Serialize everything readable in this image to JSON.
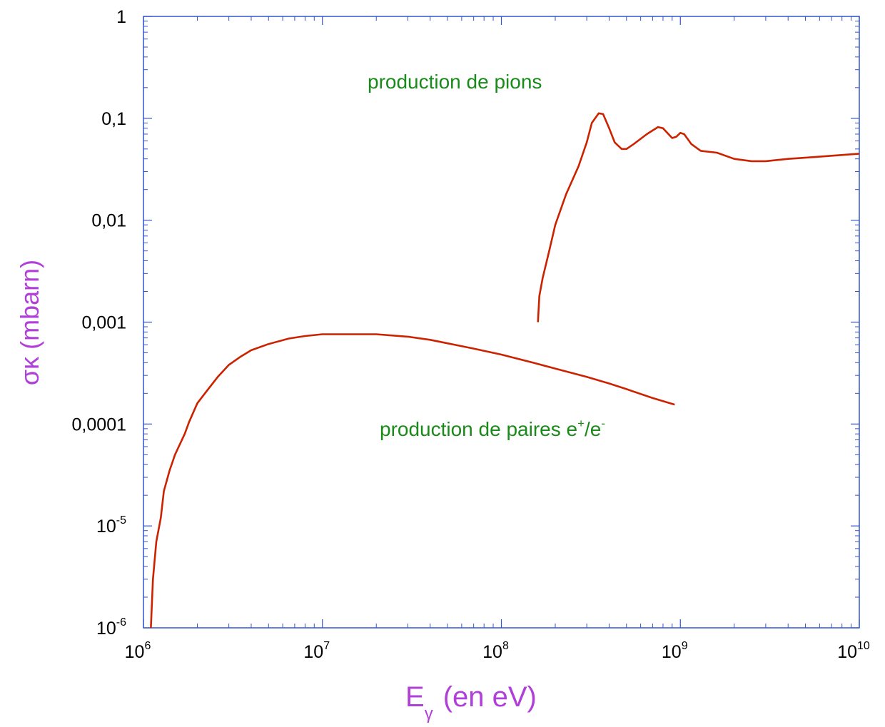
{
  "chart_data": {
    "type": "line",
    "xscale": "log",
    "yscale": "log",
    "xlim": [
      1000000,
      10000000000
    ],
    "ylim": [
      1e-06,
      1
    ],
    "grid": false,
    "xlabel": "E",
    "xlabel_subscript": "γ",
    "xlabel_suffix": "(en eV)",
    "ylabel": "σκ (mbarn)",
    "x_ticks": [
      {
        "value": 1000000,
        "base": "10",
        "exp": "6"
      },
      {
        "value": 10000000,
        "base": "10",
        "exp": "7"
      },
      {
        "value": 100000000,
        "base": "10",
        "exp": "8"
      },
      {
        "value": 1000000000,
        "base": "10",
        "exp": "9"
      },
      {
        "value": 10000000000,
        "base": "10",
        "exp": "10"
      }
    ],
    "y_ticks": [
      {
        "value": 1,
        "label": "1",
        "exp": ""
      },
      {
        "value": 0.1,
        "label": "0,1",
        "exp": ""
      },
      {
        "value": 0.01,
        "label": "0,01",
        "exp": ""
      },
      {
        "value": 0.001,
        "label": "0,001",
        "exp": ""
      },
      {
        "value": 0.0001,
        "label": "0,0001",
        "exp": ""
      },
      {
        "value": 1e-05,
        "label": "10",
        "exp": "-5"
      },
      {
        "value": 1e-06,
        "label": "10",
        "exp": "-6"
      }
    ],
    "annotations": {
      "pions": "production de pions",
      "pairs_prefix": "production de paires e",
      "pairs_sup1": "+",
      "pairs_mid": "/e",
      "pairs_sup2": "-"
    },
    "colors": {
      "curve": "#cc2200",
      "axis": "#3355cc",
      "label": "#b040d8",
      "annotation": "#1a8a1a"
    },
    "series": [
      {
        "points": [
          [
            1100000,
            1e-06
          ],
          [
            1130000,
            3e-06
          ],
          [
            1180000,
            7e-06
          ],
          [
            1250000,
            1.2e-05
          ],
          [
            1300000,
            2.2e-05
          ],
          [
            1400000,
            3.5e-05
          ],
          [
            1500000,
            5e-05
          ],
          [
            1700000,
            8e-05
          ],
          [
            1800000,
            0.000105
          ],
          [
            2000000,
            0.00016
          ],
          [
            2300000,
            0.00022
          ],
          [
            2600000,
            0.00029
          ],
          [
            3000000,
            0.00038
          ],
          [
            3500000,
            0.00046
          ],
          [
            4000000,
            0.00053
          ],
          [
            5000000,
            0.00061
          ],
          [
            6500000,
            0.00069
          ],
          [
            8000000,
            0.00073
          ],
          [
            10000000,
            0.00076
          ],
          [
            14000000,
            0.00076
          ],
          [
            20000000,
            0.00076
          ],
          [
            30000000,
            0.00072
          ],
          [
            40000000,
            0.00067
          ],
          [
            50000000,
            0.00062
          ],
          [
            70000000,
            0.00055
          ],
          [
            100000000,
            0.00048
          ],
          [
            150000000,
            0.0004
          ],
          [
            200000000,
            0.00035
          ],
          [
            300000000,
            0.00029
          ],
          [
            400000000,
            0.00025
          ],
          [
            500000000,
            0.00022
          ],
          [
            700000000,
            0.00018
          ],
          [
            930000000,
            0.000155
          ]
        ]
      },
      {
        "points": [
          [
            160000000,
            0.001
          ],
          [
            163000000,
            0.0018
          ],
          [
            170000000,
            0.0027
          ],
          [
            185000000,
            0.005
          ],
          [
            200000000,
            0.009
          ],
          [
            230000000,
            0.018
          ],
          [
            270000000,
            0.034
          ],
          [
            300000000,
            0.058
          ],
          [
            320000000,
            0.09
          ],
          [
            350000000,
            0.112
          ],
          [
            370000000,
            0.11
          ],
          [
            400000000,
            0.08
          ],
          [
            430000000,
            0.058
          ],
          [
            470000000,
            0.05
          ],
          [
            500000000,
            0.05
          ],
          [
            550000000,
            0.056
          ],
          [
            650000000,
            0.07
          ],
          [
            750000000,
            0.082
          ],
          [
            800000000,
            0.08
          ],
          [
            900000000,
            0.064
          ],
          [
            950000000,
            0.066
          ],
          [
            1000000000,
            0.072
          ],
          [
            1050000000,
            0.07
          ],
          [
            1150000000,
            0.056
          ],
          [
            1300000000,
            0.048
          ],
          [
            1600000000,
            0.046
          ],
          [
            2000000000,
            0.04
          ],
          [
            2500000000,
            0.038
          ],
          [
            3000000000,
            0.038
          ],
          [
            4000000000,
            0.04
          ],
          [
            6000000000,
            0.042
          ],
          [
            10000000000,
            0.045
          ]
        ]
      }
    ]
  }
}
